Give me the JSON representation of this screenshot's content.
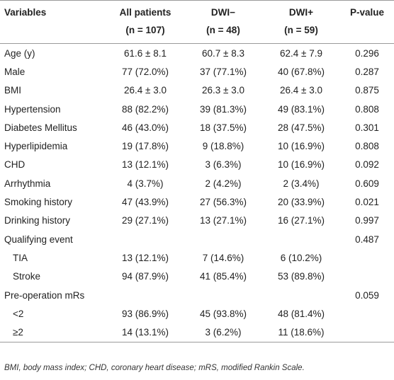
{
  "table": {
    "header": [
      "Variables",
      {
        "label": "All patients",
        "n": "(n = 107)"
      },
      {
        "label": "DWI−",
        "n": "(n = 48)"
      },
      {
        "label": "DWI+",
        "n": "(n = 59)"
      },
      "P-value"
    ],
    "rows": [
      [
        "Age (y)",
        "61.6 ± 8.1",
        "60.7 ± 8.3",
        "62.4 ± 7.9",
        "0.296"
      ],
      [
        "Male",
        "77 (72.0%)",
        "37 (77.1%)",
        "40 (67.8%)",
        "0.287"
      ],
      [
        "BMI",
        "26.4 ± 3.0",
        "26.3 ± 3.0",
        "26.4 ± 3.0",
        "0.875"
      ],
      [
        "Hypertension",
        "88 (82.2%)",
        "39 (81.3%)",
        "49 (83.1%)",
        "0.808"
      ],
      [
        "Diabetes Mellitus",
        "46 (43.0%)",
        "18 (37.5%)",
        "28 (47.5%)",
        "0.301"
      ],
      [
        "Hyperlipidemia",
        "19 (17.8%)",
        "9 (18.8%)",
        "10 (16.9%)",
        "0.808"
      ],
      [
        "CHD",
        "13 (12.1%)",
        "3 (6.3%)",
        "10 (16.9%)",
        "0.092"
      ],
      [
        "Arrhythmia",
        "4 (3.7%)",
        "2 (4.2%)",
        "2 (3.4%)",
        "0.609"
      ],
      [
        "Smoking history",
        "47 (43.9%)",
        "27 (56.3%)",
        "20 (33.9%)",
        "0.021"
      ],
      [
        "Drinking history",
        "29 (27.1%)",
        "13 (27.1%)",
        "16 (27.1%)",
        "0.997"
      ],
      [
        "Qualifying event",
        null,
        null,
        null,
        "0.487"
      ],
      [
        "TIA",
        "13 (12.1%)",
        "7 (14.6%)",
        "6 (10.2%)",
        null
      ],
      [
        "Stroke",
        "94 (87.9%)",
        "41 (85.4%)",
        "53 (89.8%)",
        null
      ],
      [
        "Pre-operation mRs",
        null,
        null,
        null,
        "0.059"
      ],
      [
        "<2",
        "93 (86.9%)",
        "45 (93.8%)",
        "48 (81.4%)",
        null
      ],
      [
        "≥2",
        "14 (13.1%)",
        "3 (6.2%)",
        "11 (18.6%)",
        null
      ]
    ]
  },
  "footnote": "BMI, body mass index; CHD, coronary heart disease; mRS, modified Rankin Scale."
}
